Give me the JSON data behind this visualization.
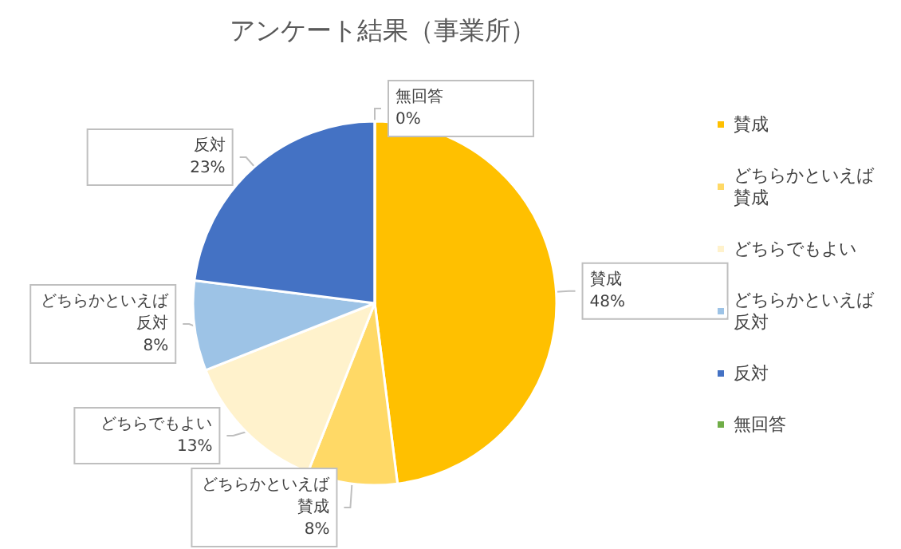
{
  "chart_data": {
    "type": "pie",
    "title": "アンケート結果（事業所）",
    "categories": [
      "賛成",
      "どちらかといえば賛成",
      "どちらでもよい",
      "どちらかといえば反対",
      "反対",
      "無回答"
    ],
    "values": [
      48,
      8,
      13,
      8,
      23,
      0
    ],
    "value_labels": [
      "48%",
      "8%",
      "13%",
      "8%",
      "23%",
      "0%"
    ],
    "colors": [
      "#ffc000",
      "#ffd966",
      "#fff2cc",
      "#9dc3e6",
      "#4472c4",
      "#70ad47"
    ],
    "legend": "right"
  }
}
